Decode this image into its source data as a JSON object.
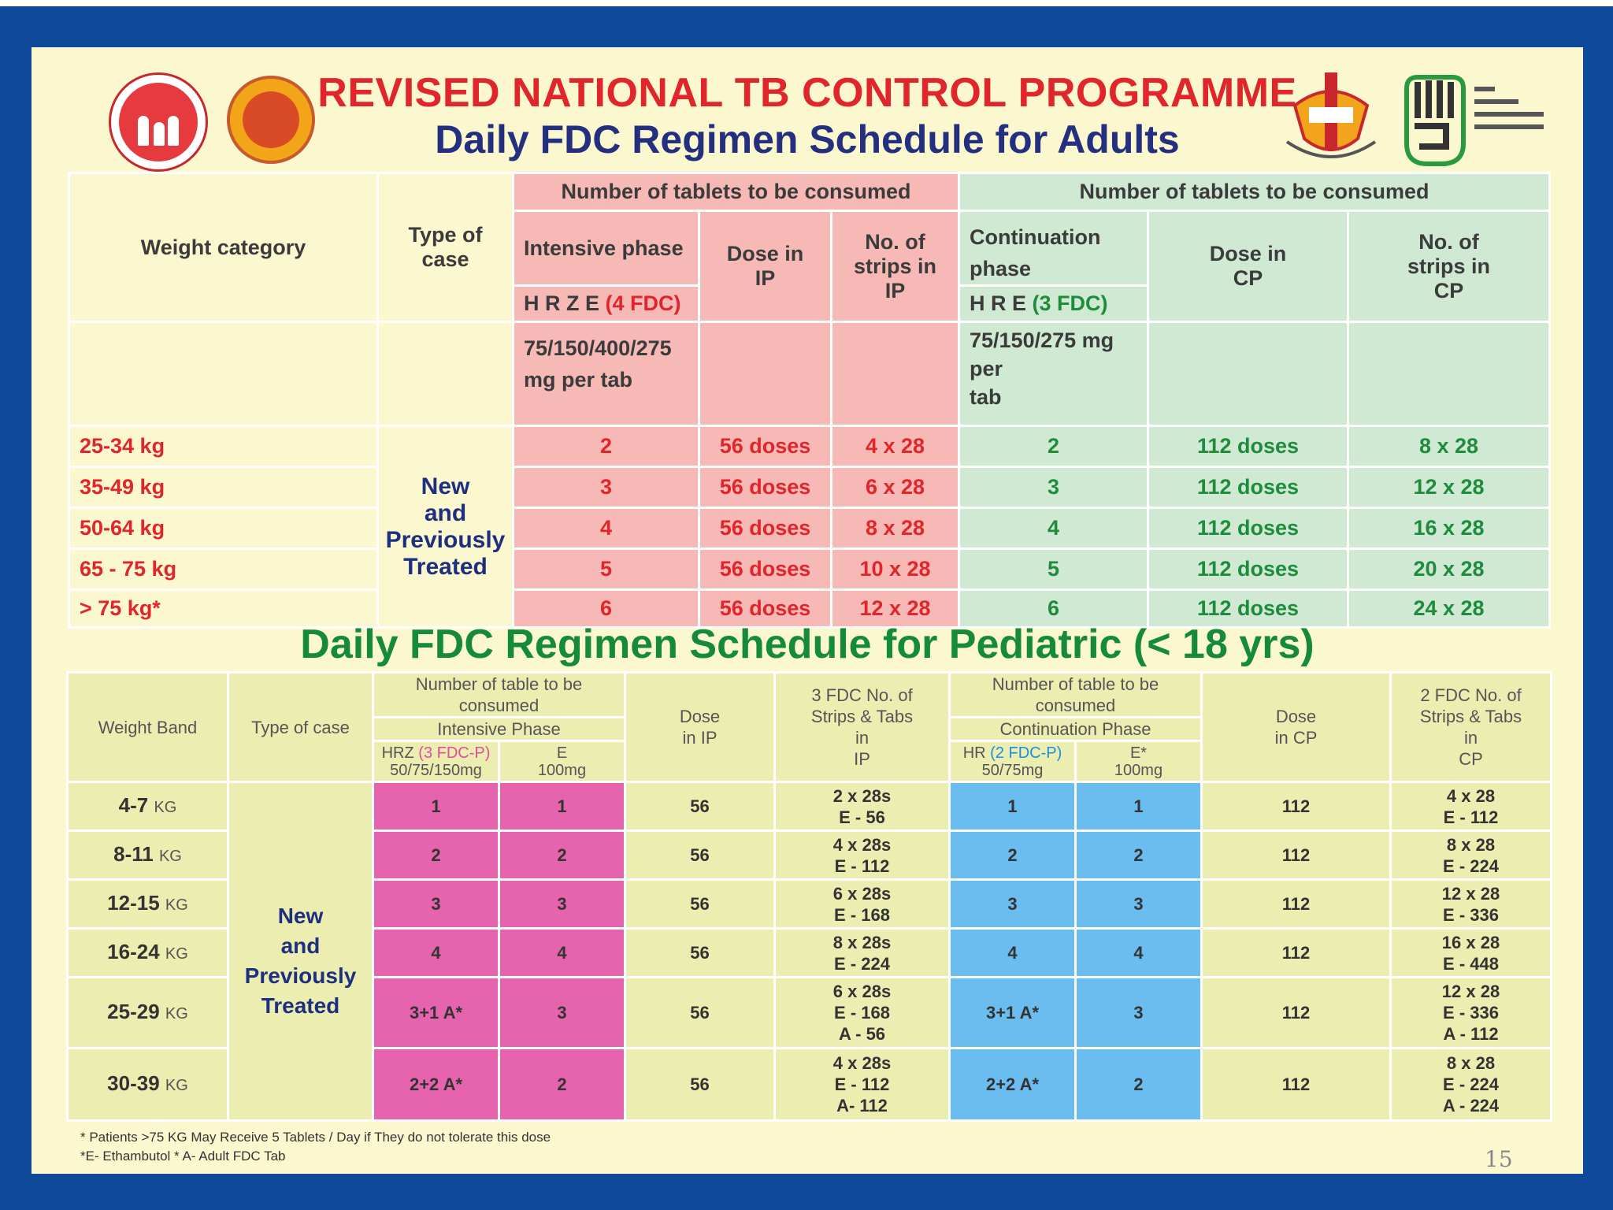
{
  "header": {
    "main_title": "REVISED NATIONAL TB CONTROL PROGRAMME",
    "sub_title": "Daily FDC Regimen Schedule for Adults"
  },
  "colors": {
    "frame": "#0f4a9a",
    "poster": "#fbf7cf",
    "title_red": "#e0252b",
    "title_navy": "#24307f",
    "pediatric_green": "#15893c",
    "ip_pink": "#f6b9b6",
    "cp_green": "#cfe9d2",
    "ped_magenta": "#e663ad",
    "ped_blue": "#6bbdf0"
  },
  "icons": [
    "national-health-mission-logo",
    "state-emblem-logo",
    "dots-logo",
    "end-tb-logo"
  ],
  "adult": {
    "h_weight": "Weight category",
    "h_type": "Type of case",
    "h_tablets": "Number of tablets to be consumed",
    "h_ip": "Intensive phase",
    "h_ip_drug": "H R Z E",
    "h_ip_fdc": "(4 FDC)",
    "h_ip_dose_a": "Dose  in",
    "h_ip_dose_b": "IP",
    "h_ip_strips_a": "No. of",
    "h_ip_strips_b": "strips in",
    "h_ip_strips_c": "IP",
    "h_ip_mg_a": "75/150/400/275",
    "h_ip_mg_b": "mg per tab",
    "h_cp_a": "Continuation",
    "h_cp_b": "phase",
    "h_cp_drug": "H R E",
    "h_cp_fdc": "(3 FDC)",
    "h_cp_dose_a": "Dose  in",
    "h_cp_dose_b": "CP",
    "h_cp_strips_a": "No. of",
    "h_cp_strips_b": "strips in",
    "h_cp_strips_c": "CP",
    "h_cp_mg_a": "75/150/275 mg",
    "h_cp_mg_b": "per",
    "h_cp_mg_c": "tab",
    "treat_a": "New",
    "treat_b": "and",
    "treat_c": "Previously",
    "treat_d": "Treated",
    "rows": [
      {
        "weight": "25-34 kg",
        "ip_tabs": "2",
        "ip_dose": "56 doses",
        "ip_strips": "4 x 28",
        "cp_tabs": "2",
        "cp_dose": "112 doses",
        "cp_strips": "8 x 28"
      },
      {
        "weight": "35-49 kg",
        "ip_tabs": "3",
        "ip_dose": "56 doses",
        "ip_strips": "6 x 28",
        "cp_tabs": "3",
        "cp_dose": "112 doses",
        "cp_strips": "12 x 28"
      },
      {
        "weight": "50-64 kg",
        "ip_tabs": "4",
        "ip_dose": "56 doses",
        "ip_strips": "8 x 28",
        "cp_tabs": "4",
        "cp_dose": "112 doses",
        "cp_strips": "16 x 28"
      },
      {
        "weight": "65 - 75 kg",
        "ip_tabs": "5",
        "ip_dose": "56 doses",
        "ip_strips": "10 x 28",
        "cp_tabs": "5",
        "cp_dose": "112 doses",
        "cp_strips": "20 x 28"
      },
      {
        "weight": "> 75 kg*",
        "ip_tabs": "6",
        "ip_dose": "56 doses",
        "ip_strips": "12 x 28",
        "cp_tabs": "6",
        "cp_dose": "112 doses",
        "cp_strips": "24 x 28"
      }
    ]
  },
  "pediatric": {
    "title": "Daily FDC Regimen Schedule for Pediatric  (< 18 yrs)",
    "h_weight": "Weight Band",
    "h_type": "Type of case",
    "h_ip_tablets": "Number of table to be consumed",
    "h_ip_phase": "Intensive Phase",
    "h_hrz": "HRZ",
    "h_hrz_fdc": "(3 FDC-P)",
    "h_hrz_mg": "50/75/150mg",
    "h_e": "E",
    "h_e_mg": "100mg",
    "h_dose_ip_a": "Dose",
    "h_dose_ip_b": "in IP",
    "h_strips_ip_a": "3 FDC No. of",
    "h_strips_ip_b": "Strips & Tabs",
    "h_strips_ip_c": "in",
    "h_strips_ip_d": "IP",
    "h_cp_tablets": "Number of table to be consumed",
    "h_cp_phase": "Continuation Phase",
    "h_hr": "HR",
    "h_hr_fdc": "(2 FDC-P)",
    "h_hr_mg": "50/75mg",
    "h_e2": "E*",
    "h_e2_mg": "100mg",
    "h_dose_cp_a": "Dose",
    "h_dose_cp_b": "in CP",
    "h_strips_cp_a": "2 FDC No. of",
    "h_strips_cp_b": "Strips & Tabs",
    "h_strips_cp_c": "in",
    "h_strips_cp_d": "CP",
    "treat_a": "New",
    "treat_b": "and",
    "treat_c": "Previously",
    "treat_d": "Treated",
    "kg": "KG",
    "rows": [
      {
        "band": "4-7",
        "hrz": "1",
        "e": "1",
        "dose_ip": "56",
        "strips_ip": [
          "2 x 28s",
          "E - 56"
        ],
        "hr": "1",
        "e2": "1",
        "dose_cp": "112",
        "strips_cp": [
          "4 x 28",
          "E - 112"
        ]
      },
      {
        "band": "8-11",
        "hrz": "2",
        "e": "2",
        "dose_ip": "56",
        "strips_ip": [
          "4 x 28s",
          "E - 112"
        ],
        "hr": "2",
        "e2": "2",
        "dose_cp": "112",
        "strips_cp": [
          "8 x 28",
          "E - 224"
        ]
      },
      {
        "band": "12-15",
        "hrz": "3",
        "e": "3",
        "dose_ip": "56",
        "strips_ip": [
          "6 x 28s",
          "E - 168"
        ],
        "hr": "3",
        "e2": "3",
        "dose_cp": "112",
        "strips_cp": [
          "12 x 28",
          "E - 336"
        ]
      },
      {
        "band": "16-24",
        "hrz": "4",
        "e": "4",
        "dose_ip": "56",
        "strips_ip": [
          "8 x 28s",
          "E - 224"
        ],
        "hr": "4",
        "e2": "4",
        "dose_cp": "112",
        "strips_cp": [
          "16 x 28",
          "E - 448"
        ]
      },
      {
        "band": "25-29",
        "hrz": "3+1 A*",
        "e": "3",
        "dose_ip": "56",
        "strips_ip": [
          "6 x 28s",
          "E - 168",
          "A - 56"
        ],
        "hr": "3+1 A*",
        "e2": "3",
        "dose_cp": "112",
        "strips_cp": [
          "12 x 28",
          "E - 336",
          "A - 112"
        ]
      },
      {
        "band": "30-39",
        "hrz": "2+2 A*",
        "e": "2",
        "dose_ip": "56",
        "strips_ip": [
          "4 x 28s",
          "E - 112",
          "A- 112"
        ],
        "hr": "2+2 A*",
        "e2": "2",
        "dose_cp": "112",
        "strips_cp": [
          "8 x 28",
          "E - 224",
          "A - 224"
        ]
      }
    ]
  },
  "footnotes": {
    "line1": "* Patients >75 KG May Receive 5 Tablets / Day if They do not tolerate this dose",
    "line2": "*E- Ethambutol   * A- Adult FDC Tab"
  },
  "page_number": "15"
}
